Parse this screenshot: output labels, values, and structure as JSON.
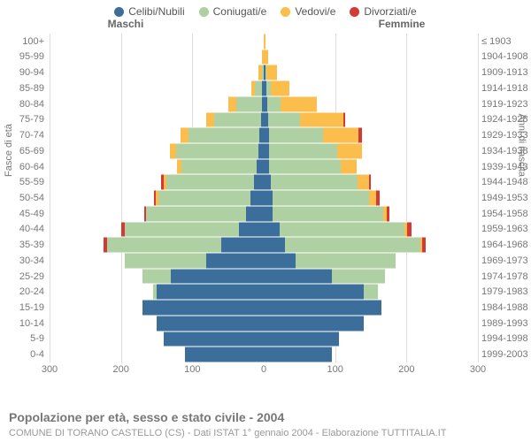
{
  "legend": {
    "items": [
      {
        "label": "Celibi/Nubili",
        "color": "#3b6e9a"
      },
      {
        "label": "Coniugati/e",
        "color": "#aed0a3"
      },
      {
        "label": "Vedovi/e",
        "color": "#fbbd4b"
      },
      {
        "label": "Divorziati/e",
        "color": "#d23a33"
      }
    ]
  },
  "headings": {
    "left": "Maschi",
    "right": "Femmine"
  },
  "axis_y_left": "Fasce di età",
  "axis_y_right": "Anni di nascita",
  "title": "Popolazione per età, sesso e stato civile - 2004",
  "subtitle": "COMUNE DI TORANO CASTELLO (CS) - Dati ISTAT 1° gennaio 2004 - Elaborazione TUTTITALIA.IT",
  "chart": {
    "xmax": 300,
    "xticks": [
      300,
      200,
      100,
      0,
      100,
      200,
      300
    ],
    "colors": {
      "celibi": "#3b6e9a",
      "coniugati": "#aed0a3",
      "vedovi": "#fbbd4b",
      "divorziati": "#d23a33"
    },
    "grid_color": "#dddddd",
    "centerline_color": "#aaaaaa",
    "background": "#ffffff",
    "label_fontsize": 11,
    "rows": [
      {
        "age": "0-4",
        "birth": "1999-2003",
        "m": {
          "c": 110,
          "s": 0,
          "v": 0,
          "d": 0
        },
        "f": {
          "c": 95,
          "s": 0,
          "v": 0,
          "d": 0
        }
      },
      {
        "age": "5-9",
        "birth": "1994-1998",
        "m": {
          "c": 140,
          "s": 0,
          "v": 0,
          "d": 0
        },
        "f": {
          "c": 105,
          "s": 0,
          "v": 0,
          "d": 0
        }
      },
      {
        "age": "10-14",
        "birth": "1989-1993",
        "m": {
          "c": 150,
          "s": 0,
          "v": 0,
          "d": 0
        },
        "f": {
          "c": 140,
          "s": 0,
          "v": 0,
          "d": 0
        }
      },
      {
        "age": "15-19",
        "birth": "1984-1988",
        "m": {
          "c": 170,
          "s": 0,
          "v": 0,
          "d": 0
        },
        "f": {
          "c": 165,
          "s": 0,
          "v": 0,
          "d": 0
        }
      },
      {
        "age": "20-24",
        "birth": "1979-1983",
        "m": {
          "c": 150,
          "s": 5,
          "v": 0,
          "d": 0
        },
        "f": {
          "c": 140,
          "s": 20,
          "v": 0,
          "d": 0
        }
      },
      {
        "age": "25-29",
        "birth": "1974-1978",
        "m": {
          "c": 130,
          "s": 40,
          "v": 0,
          "d": 0
        },
        "f": {
          "c": 95,
          "s": 75,
          "v": 0,
          "d": 0
        }
      },
      {
        "age": "30-34",
        "birth": "1969-1973",
        "m": {
          "c": 80,
          "s": 115,
          "v": 0,
          "d": 0
        },
        "f": {
          "c": 45,
          "s": 140,
          "v": 0,
          "d": 0
        }
      },
      {
        "age": "35-39",
        "birth": "1964-1968",
        "m": {
          "c": 60,
          "s": 160,
          "v": 0,
          "d": 5
        },
        "f": {
          "c": 30,
          "s": 190,
          "v": 2,
          "d": 5
        }
      },
      {
        "age": "40-44",
        "birth": "1959-1963",
        "m": {
          "c": 35,
          "s": 160,
          "v": 0,
          "d": 5
        },
        "f": {
          "c": 22,
          "s": 175,
          "v": 4,
          "d": 6
        }
      },
      {
        "age": "45-49",
        "birth": "1954-1958",
        "m": {
          "c": 25,
          "s": 140,
          "v": 0,
          "d": 3
        },
        "f": {
          "c": 12,
          "s": 155,
          "v": 5,
          "d": 4
        }
      },
      {
        "age": "50-54",
        "birth": "1949-1953",
        "m": {
          "c": 18,
          "s": 130,
          "v": 3,
          "d": 3
        },
        "f": {
          "c": 12,
          "s": 135,
          "v": 10,
          "d": 6
        }
      },
      {
        "age": "55-59",
        "birth": "1944-1948",
        "m": {
          "c": 14,
          "s": 122,
          "v": 4,
          "d": 4
        },
        "f": {
          "c": 10,
          "s": 122,
          "v": 16,
          "d": 2
        }
      },
      {
        "age": "60-64",
        "birth": "1939-1943",
        "m": {
          "c": 10,
          "s": 105,
          "v": 6,
          "d": 0
        },
        "f": {
          "c": 8,
          "s": 100,
          "v": 22,
          "d": 0
        }
      },
      {
        "age": "65-69",
        "birth": "1934-1938",
        "m": {
          "c": 8,
          "s": 115,
          "v": 8,
          "d": 0
        },
        "f": {
          "c": 8,
          "s": 95,
          "v": 35,
          "d": 0
        }
      },
      {
        "age": "70-74",
        "birth": "1929-1933",
        "m": {
          "c": 6,
          "s": 100,
          "v": 10,
          "d": 0
        },
        "f": {
          "c": 8,
          "s": 75,
          "v": 50,
          "d": 4
        }
      },
      {
        "age": "75-79",
        "birth": "1924-1928",
        "m": {
          "c": 4,
          "s": 65,
          "v": 12,
          "d": 0
        },
        "f": {
          "c": 6,
          "s": 45,
          "v": 60,
          "d": 3
        }
      },
      {
        "age": "80-84",
        "birth": "1919-1923",
        "m": {
          "c": 3,
          "s": 35,
          "v": 12,
          "d": 0
        },
        "f": {
          "c": 5,
          "s": 18,
          "v": 52,
          "d": 0
        }
      },
      {
        "age": "85-89",
        "birth": "1914-1918",
        "m": {
          "c": 2,
          "s": 10,
          "v": 6,
          "d": 0
        },
        "f": {
          "c": 4,
          "s": 6,
          "v": 26,
          "d": 0
        }
      },
      {
        "age": "90-94",
        "birth": "1909-1913",
        "m": {
          "c": 0,
          "s": 3,
          "v": 4,
          "d": 0
        },
        "f": {
          "c": 2,
          "s": 2,
          "v": 14,
          "d": 0
        }
      },
      {
        "age": "95-99",
        "birth": "1904-1908",
        "m": {
          "c": 0,
          "s": 0,
          "v": 2,
          "d": 0
        },
        "f": {
          "c": 0,
          "s": 0,
          "v": 6,
          "d": 0
        }
      },
      {
        "age": "100+",
        "birth": "≤ 1903",
        "m": {
          "c": 0,
          "s": 0,
          "v": 0,
          "d": 0
        },
        "f": {
          "c": 0,
          "s": 0,
          "v": 2,
          "d": 0
        }
      }
    ]
  }
}
